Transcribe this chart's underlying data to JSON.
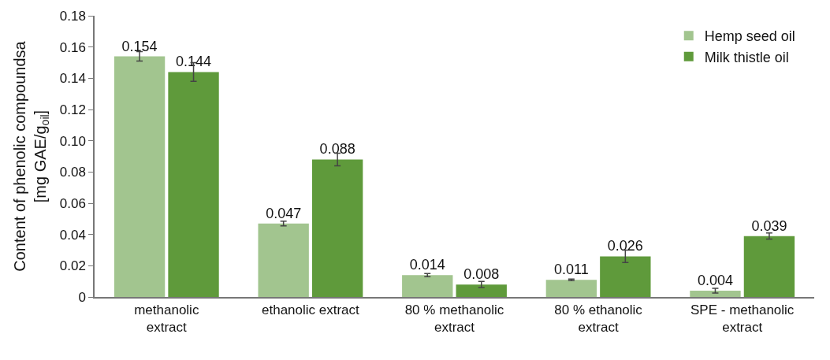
{
  "chart_data": {
    "type": "bar",
    "ylabel": "Content of phenolic compoundsa\n[mg GAE/g$_{oil}$]",
    "categories": [
      "methanolic\nextract",
      "ethanolic extract",
      "80 % methanolic\nextract",
      "80 % ethanolic\nextract",
      "SPE - methanolic\nextract"
    ],
    "series": [
      {
        "name": "Hemp seed oil",
        "color": "#a2c58f",
        "values": [
          0.154,
          0.047,
          0.014,
          0.011,
          0.004
        ],
        "errors": [
          0.003,
          0.0015,
          0.001,
          0.0005,
          0.0015
        ]
      },
      {
        "name": "Milk thistle oil",
        "color": "#5f9a3b",
        "values": [
          0.144,
          0.088,
          0.008,
          0.026,
          0.039
        ],
        "errors": [
          0.006,
          0.004,
          0.002,
          0.004,
          0.002
        ]
      }
    ],
    "ylim": [
      0,
      0.18
    ],
    "yticks": [
      {
        "value": 0,
        "label": "0"
      },
      0.02,
      0.04,
      0.06,
      0.08,
      {
        "value": 0.1,
        "label": "0.10"
      },
      0.12,
      0.14,
      0.16,
      0.18
    ],
    "data_labels": true,
    "grid": false,
    "legend": "top right"
  }
}
